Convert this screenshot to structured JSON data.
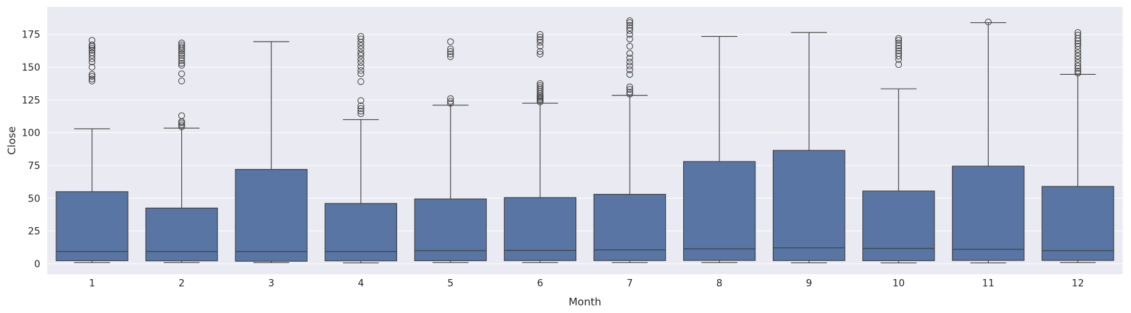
{
  "chart_data": {
    "type": "box",
    "xlabel": "Month",
    "ylabel": "Close",
    "ylim": [
      -8,
      196
    ],
    "yticks": [
      0,
      25,
      50,
      75,
      100,
      125,
      150,
      175
    ],
    "ytick_labels": [
      "0",
      "25",
      "50",
      "75",
      "100",
      "125",
      "150",
      "175"
    ],
    "grid": true,
    "colors": {
      "background": "#eaeaf2",
      "box": "#5875a4",
      "line": "#3d3d3d",
      "grid": "#ffffff"
    },
    "categories": [
      "1",
      "2",
      "3",
      "4",
      "5",
      "6",
      "7",
      "8",
      "9",
      "10",
      "11",
      "12"
    ],
    "boxes": [
      {
        "month": "1",
        "whisker_low": 0.9,
        "q1": 2.3,
        "median": 9.3,
        "q3": 55.0,
        "whisker_high": 103.0,
        "outliers": [
          139.5,
          141,
          143,
          144.5,
          150,
          154,
          156.5,
          159,
          161,
          163,
          164.5,
          166,
          167,
          170.5
        ]
      },
      {
        "month": "2",
        "whisker_low": 0.9,
        "q1": 2.2,
        "median": 9.3,
        "q3": 42.5,
        "whisker_high": 103.5,
        "outliers": [
          104.5,
          106,
          107.5,
          108.5,
          113,
          139.5,
          145,
          151.5,
          153,
          155,
          157,
          159,
          160.5,
          162.5,
          164,
          165.5,
          167,
          168.5
        ]
      },
      {
        "month": "3",
        "whisker_low": 0.8,
        "q1": 1.9,
        "median": 9.3,
        "q3": 72.0,
        "whisker_high": 169.5,
        "outliers": []
      },
      {
        "month": "4",
        "whisker_low": 0.6,
        "q1": 2.2,
        "median": 9.3,
        "q3": 46.0,
        "whisker_high": 110.0,
        "outliers": [
          114.5,
          116.5,
          118.5,
          120.5,
          124.5,
          139,
          145,
          147.5,
          150.5,
          153.5,
          156,
          159,
          161,
          164,
          166.5,
          169,
          171.5,
          173.5
        ]
      },
      {
        "month": "5",
        "whisker_low": 0.9,
        "q1": 2.3,
        "median": 10.0,
        "q3": 49.5,
        "whisker_high": 121.0,
        "outliers": [
          122.5,
          124,
          126,
          158,
          160,
          162,
          164,
          169.5
        ]
      },
      {
        "month": "6",
        "whisker_low": 0.9,
        "q1": 2.4,
        "median": 10.2,
        "q3": 50.5,
        "whisker_high": 122.5,
        "outliers": [
          123.5,
          124.5,
          125.5,
          126.5,
          127.5,
          128.5,
          130,
          131.5,
          133,
          134.5,
          136,
          137.5,
          160,
          162,
          166,
          169,
          171,
          173,
          175
        ]
      },
      {
        "month": "7",
        "whisker_low": 0.9,
        "q1": 2.4,
        "median": 10.6,
        "q3": 53.0,
        "whisker_high": 128.5,
        "outliers": [
          129.5,
          131,
          133,
          135,
          144.5,
          148,
          151,
          154,
          157,
          160.5,
          166,
          171.5,
          175,
          178,
          180,
          182,
          184,
          185.5
        ]
      },
      {
        "month": "8",
        "whisker_low": 0.9,
        "q1": 2.5,
        "median": 11.3,
        "q3": 78.0,
        "whisker_high": 173.5,
        "outliers": []
      },
      {
        "month": "9",
        "whisker_low": 0.7,
        "q1": 2.4,
        "median": 12.2,
        "q3": 86.5,
        "whisker_high": 176.5,
        "outliers": []
      },
      {
        "month": "10",
        "whisker_low": 0.6,
        "q1": 2.3,
        "median": 11.7,
        "q3": 55.5,
        "whisker_high": 133.5,
        "outliers": [
          152,
          156,
          158.5,
          160.5,
          162.5,
          164.5,
          166.5,
          168.5,
          170.5,
          172
        ]
      },
      {
        "month": "11",
        "whisker_low": 0.6,
        "q1": 2.5,
        "median": 11.0,
        "q3": 74.5,
        "whisker_high": 184.0,
        "outliers": [
          184.5
        ]
      },
      {
        "month": "12",
        "whisker_low": 0.9,
        "q1": 2.5,
        "median": 10.0,
        "q3": 59.0,
        "whisker_high": 144.5,
        "outliers": [
          145.5,
          147,
          149,
          151,
          153.5,
          156,
          158.5,
          161,
          163.5,
          166,
          168,
          170,
          172,
          174.5,
          176.5
        ]
      }
    ]
  }
}
